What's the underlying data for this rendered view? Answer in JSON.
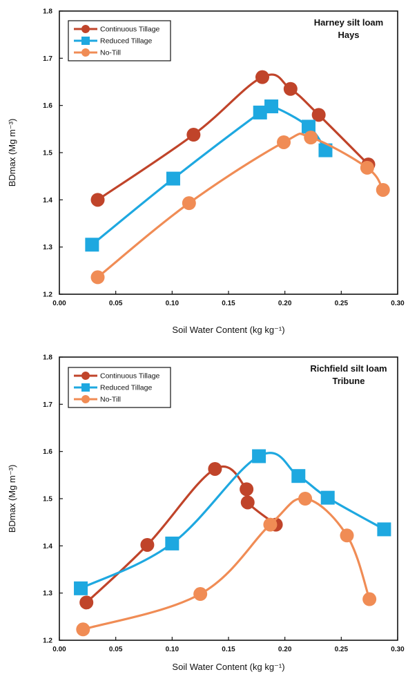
{
  "chart_data": [
    {
      "type": "line",
      "title": "Harney silt loam",
      "subtitle": "Hays",
      "xlabel": "Soil Water Content (kg kg⁻¹)",
      "ylabel": "BDmax (Mg m⁻³)",
      "xlim": [
        0.0,
        0.3
      ],
      "ylim": [
        1.2,
        1.8
      ],
      "xticks": [
        "0.00",
        "0.05",
        "0.10",
        "0.15",
        "0.20",
        "0.25",
        "0.30"
      ],
      "yticks": [
        "1.2",
        "1.3",
        "1.4",
        "1.5",
        "1.6",
        "1.7",
        "1.8"
      ],
      "legend_position": "top-left",
      "series": [
        {
          "name": "Continuous Tillage",
          "color": "#c0442a",
          "marker": "circle",
          "x": [
            0.034,
            0.119,
            0.18,
            0.205,
            0.23,
            0.274
          ],
          "y": [
            1.4,
            1.538,
            1.66,
            1.635,
            1.58,
            1.475
          ]
        },
        {
          "name": "Reduced Tillage",
          "color": "#1ea8e0",
          "marker": "square",
          "x": [
            0.029,
            0.101,
            0.178,
            0.188,
            0.221,
            0.236
          ],
          "y": [
            1.305,
            1.445,
            1.585,
            1.598,
            1.555,
            1.505
          ]
        },
        {
          "name": "No-Till",
          "color": "#f08c55",
          "marker": "circle",
          "x": [
            0.034,
            0.115,
            0.199,
            0.223,
            0.273,
            0.287
          ],
          "y": [
            1.236,
            1.393,
            1.522,
            1.532,
            1.468,
            1.421
          ]
        }
      ]
    },
    {
      "type": "line",
      "title": "Richfield silt loam",
      "subtitle": "Tribune",
      "xlabel": "Soil Water Content (kg kg⁻¹)",
      "ylabel": "BDmax (Mg m⁻³)",
      "xlim": [
        0.0,
        0.3
      ],
      "ylim": [
        1.2,
        1.8
      ],
      "xticks": [
        "0.00",
        "0.05",
        "0.10",
        "0.15",
        "0.20",
        "0.25",
        "0.30"
      ],
      "yticks": [
        "1.2",
        "1.3",
        "1.4",
        "1.5",
        "1.6",
        "1.7",
        "1.8"
      ],
      "legend_position": "top-left",
      "series": [
        {
          "name": "Continuous Tillage",
          "color": "#c0442a",
          "marker": "circle",
          "x": [
            0.024,
            0.078,
            0.138,
            0.166,
            0.167,
            0.192
          ],
          "y": [
            1.28,
            1.402,
            1.563,
            1.52,
            1.492,
            1.445
          ]
        },
        {
          "name": "Reduced Tillage",
          "color": "#1ea8e0",
          "marker": "square",
          "x": [
            0.019,
            0.1,
            0.177,
            0.212,
            0.238,
            0.288
          ],
          "y": [
            1.31,
            1.405,
            1.59,
            1.548,
            1.502,
            1.435
          ]
        },
        {
          "name": "No-Till",
          "color": "#f08c55",
          "marker": "circle",
          "x": [
            0.021,
            0.125,
            0.187,
            0.218,
            0.255,
            0.275
          ],
          "y": [
            1.223,
            1.298,
            1.445,
            1.5,
            1.422,
            1.287
          ]
        }
      ]
    }
  ]
}
